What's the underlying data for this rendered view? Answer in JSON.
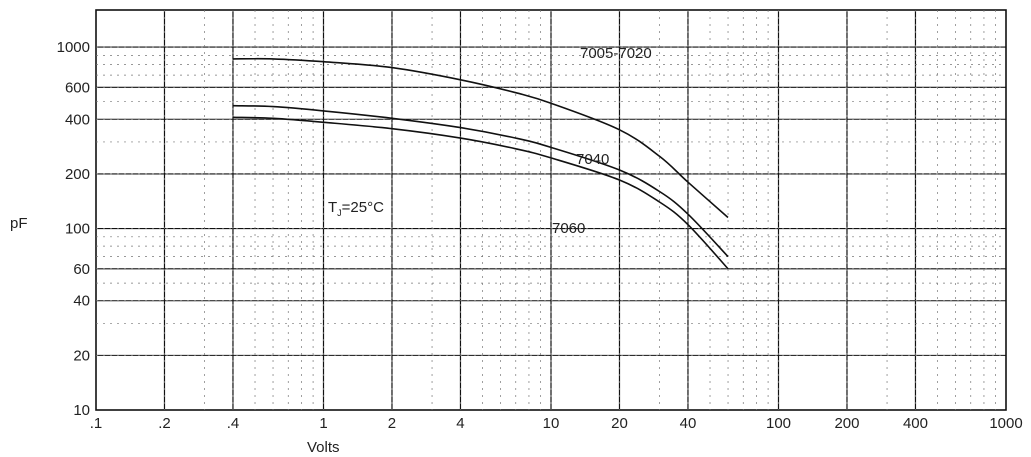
{
  "chart_data": {
    "type": "line",
    "scale": {
      "x": "log",
      "y": "log"
    },
    "xlim": [
      0.1,
      1000
    ],
    "ylim": [
      10,
      1600
    ],
    "xlabel": "Volts",
    "ylabel": "pF",
    "x_ticks": [
      {
        "v": 0.1,
        "label": ".1"
      },
      {
        "v": 0.2,
        "label": ".2"
      },
      {
        "v": 0.4,
        "label": ".4"
      },
      {
        "v": 1,
        "label": "1"
      },
      {
        "v": 2,
        "label": "2"
      },
      {
        "v": 4,
        "label": "4"
      },
      {
        "v": 10,
        "label": "10"
      },
      {
        "v": 20,
        "label": "20"
      },
      {
        "v": 40,
        "label": "40"
      },
      {
        "v": 100,
        "label": "100"
      },
      {
        "v": 200,
        "label": "200"
      },
      {
        "v": 400,
        "label": "400"
      },
      {
        "v": 1000,
        "label": "1000"
      }
    ],
    "y_ticks": [
      {
        "v": 10,
        "label": "10"
      },
      {
        "v": 20,
        "label": "20"
      },
      {
        "v": 40,
        "label": "40"
      },
      {
        "v": 60,
        "label": "60"
      },
      {
        "v": 100,
        "label": "100"
      },
      {
        "v": 200,
        "label": "200"
      },
      {
        "v": 400,
        "label": "400"
      },
      {
        "v": 600,
        "label": "600"
      },
      {
        "v": 1000,
        "label": "1000"
      }
    ],
    "annotation": {
      "text": "T",
      "subscript": "J",
      "rest": "=25°C"
    },
    "series": [
      {
        "name": "7005-7020",
        "x": [
          0.4,
          0.6,
          1,
          2,
          4,
          7,
          10,
          20,
          30,
          40,
          60
        ],
        "y": [
          860,
          860,
          830,
          770,
          660,
          560,
          490,
          350,
          250,
          180,
          115
        ]
      },
      {
        "name": "7040",
        "x": [
          0.4,
          0.6,
          1,
          2,
          4,
          7,
          10,
          20,
          30,
          40,
          60
        ],
        "y": [
          475,
          470,
          445,
          405,
          360,
          315,
          280,
          210,
          160,
          120,
          70
        ]
      },
      {
        "name": "7060",
        "x": [
          0.4,
          0.6,
          1,
          2,
          4,
          7,
          10,
          20,
          30,
          40,
          60
        ],
        "y": [
          410,
          405,
          385,
          355,
          315,
          275,
          245,
          185,
          140,
          105,
          60
        ]
      }
    ],
    "grid": true
  }
}
